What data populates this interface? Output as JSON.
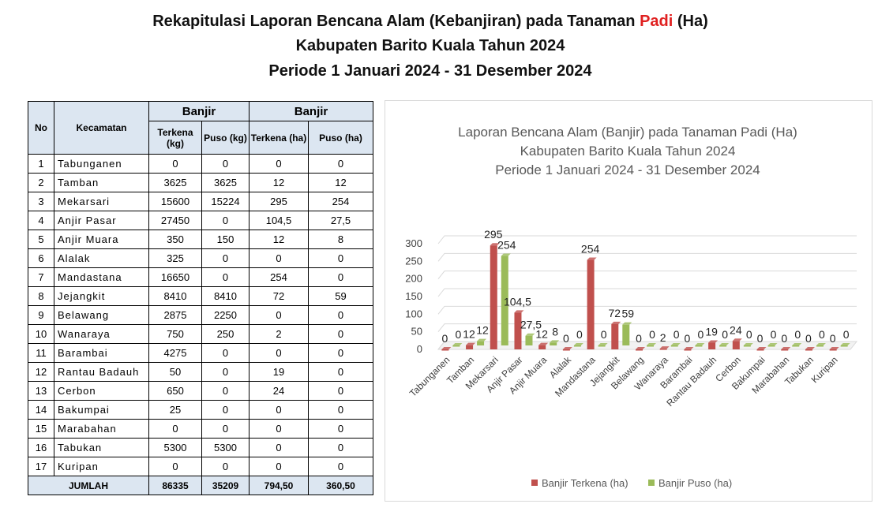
{
  "header": {
    "title_1": [
      "Rekapitulasi Laporan Bencana Alam (Kebanjiran)  pada Tanaman",
      "Padi",
      "(Ha)"
    ],
    "title_2": "Kabupaten Barito Kuala Tahun 2024",
    "title_3": "Periode 1 Januari 2024 - 31 Desember 2024"
  },
  "table": {
    "header_1": [
      "No",
      "Kecamatan",
      "Banjir",
      "Banjir"
    ],
    "header_2": [
      "Terkena (kg)",
      "Puso (kg)",
      "Terkena (ha)",
      "Puso (ha)"
    ],
    "rows": [
      [
        "1",
        "Tabunganen",
        "0",
        "0",
        "0",
        "0"
      ],
      [
        "2",
        "Tamban",
        "3625",
        "3625",
        "12",
        "12"
      ],
      [
        "3",
        "Mekarsari",
        "15600",
        "15224",
        "295",
        "254"
      ],
      [
        "4",
        "Anjir Pasar",
        "27450",
        "0",
        "104,5",
        "27,5"
      ],
      [
        "5",
        "Anjir Muara",
        "350",
        "150",
        "12",
        "8"
      ],
      [
        "6",
        "Alalak",
        "325",
        "0",
        "0",
        "0"
      ],
      [
        "7",
        "Mandastana",
        "16650",
        "0",
        "254",
        "0"
      ],
      [
        "8",
        "Jejangkit",
        "8410",
        "8410",
        "72",
        "59"
      ],
      [
        "9",
        "Belawang",
        "2875",
        "2250",
        "0",
        "0"
      ],
      [
        "10",
        "Wanaraya",
        "750",
        "250",
        "2",
        "0"
      ],
      [
        "11",
        "Barambai",
        "4275",
        "0",
        "0",
        "0"
      ],
      [
        "12",
        "Rantau Badauh",
        "50",
        "0",
        "19",
        "0"
      ],
      [
        "13",
        "Cerbon",
        "650",
        "0",
        "24",
        "0"
      ],
      [
        "14",
        "Bakumpai",
        "25",
        "0",
        "0",
        "0"
      ],
      [
        "15",
        "Marabahan",
        "0",
        "0",
        "0",
        "0"
      ],
      [
        "16",
        "Tabukan",
        "5300",
        "5300",
        "0",
        "0"
      ],
      [
        "17",
        "Kuripan",
        "0",
        "0",
        "0",
        "0"
      ]
    ],
    "total": [
      "JUMLAH",
      "86335",
      "35209",
      "794,50",
      "360,50"
    ]
  },
  "chart_data": {
    "type": "bar",
    "title_lines": [
      "Laporan Bencana Alam (Banjir) pada Tanaman Padi (Ha)",
      "Kabupaten Barito Kuala Tahun 2024",
      "Periode 1 Januari 2024 - 31 Desember 2024"
    ],
    "categories": [
      "Tabunganen",
      "Tamban",
      "Mekarsari",
      "Anjir Pasar",
      "Anjir Muara",
      "Alalak",
      "Mandastana",
      "Jejangkit",
      "Belawang",
      "Wanaraya",
      "Barambai",
      "Rantau Badauh",
      "Cerbon",
      "Bakumpai",
      "Marabahan",
      "Tabukan",
      "Kuripan"
    ],
    "series": [
      {
        "name": "Banjir Terkena (ha)",
        "color": "#c0504d",
        "values": [
          0,
          12,
          295,
          104.5,
          12,
          0,
          254,
          72,
          0,
          2,
          0,
          19,
          24,
          0,
          0,
          0,
          0
        ],
        "value_labels": [
          "0",
          "12",
          "295",
          "104,5",
          "12",
          "0",
          "254",
          "72",
          "0",
          "2",
          "0",
          "19",
          "24",
          "0",
          "0",
          "0",
          "0"
        ]
      },
      {
        "name": "Banjir Puso (ha)",
        "color": "#9bbb59",
        "values": [
          0,
          12,
          254,
          27.5,
          8,
          0,
          0,
          59,
          0,
          0,
          0,
          0,
          0,
          0,
          0,
          0,
          0
        ],
        "value_labels": [
          "0",
          "12",
          "254",
          "27,5",
          "8",
          "0",
          "0",
          "59",
          "0",
          "0",
          "0",
          "0",
          "0",
          "0",
          "0",
          "0",
          "0"
        ]
      }
    ],
    "ylim": [
      0,
      300
    ],
    "yticks": [
      0,
      50,
      100,
      150,
      200,
      250,
      300
    ],
    "grid": true,
    "legend": "bottom"
  }
}
